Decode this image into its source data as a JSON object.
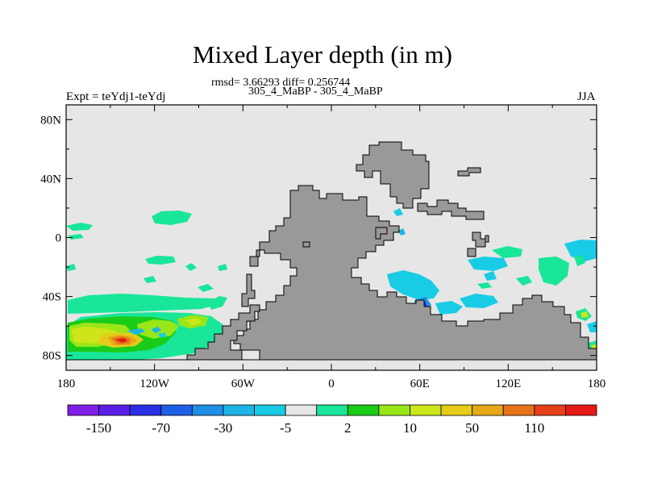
{
  "title": "Mixed Layer depth (in m)",
  "stats": {
    "line": "rmsd= 3.66293 diff= 0.256744"
  },
  "periods": "305_4_MaBP - 305_4_MaBP",
  "experiment": "Expt = teYdj1-teYdj",
  "season": "JJA",
  "map": {
    "projection": "cylindrical equidistant",
    "lon_range": [
      -180,
      180
    ],
    "lat_range": [
      -90,
      90
    ],
    "lon_ticks": [
      {
        "value": -180,
        "label": "180"
      },
      {
        "value": -120,
        "label": "120W"
      },
      {
        "value": -60,
        "label": "60W"
      },
      {
        "value": 0,
        "label": "0"
      },
      {
        "value": 60,
        "label": "60E"
      },
      {
        "value": 120,
        "label": "120E"
      },
      {
        "value": 180,
        "label": "180"
      }
    ],
    "lat_ticks": [
      {
        "value": 80,
        "label": "80N"
      },
      {
        "value": 40,
        "label": "40N"
      },
      {
        "value": 0,
        "label": "0"
      },
      {
        "value": -40,
        "label": "40S"
      },
      {
        "value": -80,
        "label": "80S"
      }
    ],
    "colors": {
      "ocean_zero": "#e6e6e6",
      "land": "#999999",
      "coast": "#000000"
    }
  },
  "colorbar": {
    "colors": [
      "#7f1fe6",
      "#5a1fe6",
      "#2a2fe6",
      "#1f5fe6",
      "#1f8fe6",
      "#1fb4e6",
      "#19cce6",
      "#e6e6e6",
      "#19e699",
      "#19cc19",
      "#99e619",
      "#cce619",
      "#e6cc19",
      "#e6a719",
      "#e67319",
      "#e63f19",
      "#e61919"
    ],
    "labels": [
      {
        "after_box": 1,
        "text": "-150"
      },
      {
        "after_box": 3,
        "text": "-70"
      },
      {
        "after_box": 5,
        "text": "-30"
      },
      {
        "after_box": 7,
        "text": "-5"
      },
      {
        "after_box": 9,
        "text": "2"
      },
      {
        "after_box": 11,
        "text": "10"
      },
      {
        "after_box": 13,
        "text": "50"
      },
      {
        "after_box": 15,
        "text": "110"
      }
    ]
  }
}
